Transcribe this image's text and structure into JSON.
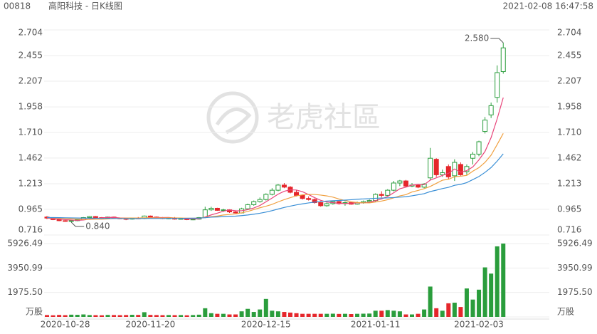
{
  "chart_data": {
    "type": "candlestick",
    "header": {
      "code": "00818",
      "name": "高阳科技 - 日K线图",
      "datetime": "2021-02-08 16:47:58"
    },
    "watermark": "老虎社區",
    "categories": [
      null,
      null,
      null,
      "2020-10-28",
      null,
      null,
      null,
      null,
      null,
      null,
      null,
      null,
      null,
      null,
      null,
      null,
      null,
      "2020-11-20",
      null,
      null,
      null,
      null,
      null,
      null,
      null,
      null,
      null,
      null,
      null,
      null,
      null,
      null,
      null,
      null,
      null,
      null,
      "2020-12-15",
      null,
      null,
      null,
      null,
      null,
      null,
      null,
      null,
      null,
      null,
      null,
      null,
      null,
      null,
      null,
      null,
      null,
      "2021-01-11",
      null,
      null,
      null,
      null,
      null,
      null,
      null,
      null,
      null,
      null,
      null,
      null,
      null,
      null,
      null,
      null,
      "2021-02-03",
      null,
      null,
      null,
      null
    ],
    "open": [
      0.89,
      0.88,
      0.865,
      0.855,
      0.85,
      0.855,
      0.865,
      0.885,
      0.895,
      0.885,
      0.88,
      0.89,
      0.88,
      0.875,
      0.87,
      0.88,
      0.875,
      0.9,
      0.89,
      0.885,
      0.875,
      0.88,
      0.87,
      0.875,
      0.865,
      0.87,
      0.885,
      0.96,
      0.975,
      0.955,
      0.96,
      0.94,
      0.93,
      0.97,
      1.01,
      1.04,
      1.06,
      1.11,
      1.15,
      1.2,
      1.18,
      1.13,
      1.1,
      1.07,
      1.06,
      1.03,
      1,
      1.02,
      1.04,
      1.02,
      1.03,
      1.015,
      1.03,
      1.04,
      1.05,
      1.11,
      1.1,
      1.15,
      1.22,
      1.24,
      1.19,
      1.2,
      1.18,
      1.27,
      1.45,
      1.3,
      1.38,
      1.29,
      1.4,
      1.33,
      1.46,
      1.5,
      1.72,
      1.88,
      2.05,
      2.3
    ],
    "high": [
      0.9,
      0.885,
      0.87,
      0.86,
      0.86,
      0.87,
      0.89,
      0.9,
      0.9,
      0.89,
      0.895,
      0.895,
      0.885,
      0.88,
      0.885,
      0.89,
      0.905,
      0.905,
      0.895,
      0.89,
      0.885,
      0.89,
      0.88,
      0.88,
      0.875,
      0.89,
      0.99,
      0.99,
      0.98,
      0.97,
      0.965,
      0.95,
      0.98,
      1.02,
      1.05,
      1.08,
      1.12,
      1.17,
      1.21,
      1.22,
      1.19,
      1.15,
      1.11,
      1.09,
      1.07,
      1.04,
      1.03,
      1.05,
      1.05,
      1.04,
      1.04,
      1.04,
      1.05,
      1.06,
      1.12,
      1.14,
      1.16,
      1.24,
      1.25,
      1.25,
      1.22,
      1.21,
      1.22,
      1.56,
      1.46,
      1.35,
      1.4,
      1.45,
      1.42,
      1.4,
      1.52,
      1.63,
      1.86,
      2,
      2.36,
      2.58
    ],
    "low": [
      0.87,
      0.86,
      0.85,
      0.845,
      0.84,
      0.85,
      0.86,
      0.88,
      0.88,
      0.875,
      0.875,
      0.875,
      0.87,
      0.86,
      0.865,
      0.87,
      0.87,
      0.885,
      0.88,
      0.87,
      0.87,
      0.865,
      0.865,
      0.86,
      0.86,
      0.865,
      0.88,
      0.95,
      0.95,
      0.94,
      0.93,
      0.925,
      0.925,
      0.96,
      1,
      1.03,
      1.05,
      1.1,
      1.14,
      1.17,
      1.12,
      1.09,
      1.06,
      1.05,
      1.02,
      0.99,
      0.99,
      1.01,
      1.01,
      1,
      1.01,
      1.01,
      1.02,
      1.03,
      1.04,
      1.08,
      1.09,
      1.14,
      1.19,
      1.18,
      1.18,
      1.17,
      1.17,
      1.25,
      1.28,
      1.28,
      1.26,
      1.24,
      1.29,
      1.3,
      1.4,
      1.48,
      1.7,
      1.85,
      2,
      2.28
    ],
    "close": [
      0.88,
      0.865,
      0.855,
      0.85,
      0.855,
      0.865,
      0.885,
      0.895,
      0.885,
      0.88,
      0.89,
      0.88,
      0.875,
      0.87,
      0.88,
      0.875,
      0.9,
      0.89,
      0.885,
      0.875,
      0.88,
      0.87,
      0.875,
      0.865,
      0.87,
      0.885,
      0.96,
      0.975,
      0.955,
      0.96,
      0.94,
      0.93,
      0.97,
      1.01,
      1.04,
      1.06,
      1.11,
      1.15,
      1.2,
      1.18,
      1.13,
      1.1,
      1.07,
      1.06,
      1.03,
      1,
      1.02,
      1.04,
      1.02,
      1.03,
      1.015,
      1.03,
      1.04,
      1.05,
      1.11,
      1.1,
      1.15,
      1.22,
      1.24,
      1.19,
      1.2,
      1.18,
      1.21,
      1.46,
      1.3,
      1.32,
      1.28,
      1.42,
      1.3,
      1.38,
      1.5,
      1.62,
      1.83,
      1.97,
      2.29,
      2.53
    ],
    "volume": [
      150,
      130,
      160,
      140,
      180,
      170,
      200,
      150,
      140,
      130,
      160,
      150,
      140,
      150,
      170,
      160,
      380,
      160,
      150,
      140,
      150,
      140,
      150,
      130,
      150,
      180,
      700,
      300,
      250,
      250,
      200,
      200,
      450,
      650,
      400,
      600,
      1450,
      500,
      450,
      400,
      350,
      300,
      250,
      250,
      250,
      250,
      250,
      260,
      240,
      250,
      230,
      250,
      260,
      270,
      500,
      500,
      550,
      500,
      450,
      200,
      200,
      250,
      600,
      2450,
      700,
      500,
      1100,
      1150,
      800,
      2300,
      1400,
      2200,
      4000,
      3500,
      5700,
      5926.49
    ],
    "ma": [
      {
        "color": "#e8457a",
        "values": [
          0.88,
          0.875,
          0.87,
          0.865,
          0.861,
          0.858,
          0.862,
          0.87,
          0.877,
          0.882,
          0.887,
          0.886,
          0.882,
          0.88,
          0.879,
          0.876,
          0.88,
          0.884,
          0.885,
          0.885,
          0.886,
          0.88,
          0.877,
          0.873,
          0.872,
          0.873,
          0.891,
          0.911,
          0.928,
          0.947,
          0.958,
          0.952,
          0.951,
          0.962,
          0.978,
          1.002,
          1.038,
          1.074,
          1.112,
          1.14,
          1.154,
          1.152,
          1.136,
          1.108,
          1.078,
          1.052,
          1.036,
          1.03,
          1.022,
          1.022,
          1.025,
          1.027,
          1.027,
          1.033,
          1.049,
          1.066,
          1.09,
          1.126,
          1.164,
          1.18,
          1.2,
          1.206,
          1.204,
          1.248,
          1.27,
          1.294,
          1.314,
          1.356,
          1.324,
          1.34,
          1.376,
          1.444,
          1.526,
          1.66,
          1.842,
          2.048
        ]
      },
      {
        "color": "#f0a040",
        "values": [
          0.885,
          0.882,
          0.879,
          0.876,
          0.873,
          0.87,
          0.868,
          0.868,
          0.869,
          0.869,
          0.872,
          0.876,
          0.879,
          0.88,
          0.881,
          0.881,
          0.883,
          0.883,
          0.882,
          0.882,
          0.883,
          0.882,
          0.881,
          0.879,
          0.878,
          0.88,
          0.886,
          0.894,
          0.9,
          0.91,
          0.915,
          0.921,
          0.931,
          0.944,
          0.962,
          0.98,
          0.995,
          1.013,
          1.037,
          1.059,
          1.078,
          1.095,
          1.105,
          1.11,
          1.109,
          1.103,
          1.095,
          1.083,
          1.065,
          1.05,
          1.038,
          1.031,
          1.028,
          1.027,
          1.036,
          1.045,
          1.058,
          1.076,
          1.095,
          1.107,
          1.133,
          1.148,
          1.165,
          1.187,
          1.217,
          1.247,
          1.256,
          1.281,
          1.286,
          1.294,
          1.335,
          1.369,
          1.42,
          1.49,
          1.593,
          1.701
        ]
      },
      {
        "color": "#3a8fd6",
        "values": [
          0.885,
          0.885,
          0.884,
          0.883,
          0.882,
          0.881,
          0.88,
          0.879,
          0.878,
          0.877,
          0.877,
          0.876,
          0.876,
          0.875,
          0.875,
          0.875,
          0.876,
          0.876,
          0.876,
          0.876,
          0.877,
          0.877,
          0.877,
          0.878,
          0.879,
          0.88,
          0.884,
          0.889,
          0.891,
          0.894,
          0.897,
          0.899,
          0.904,
          0.91,
          0.918,
          0.927,
          0.938,
          0.952,
          0.968,
          0.983,
          0.996,
          1.008,
          1.018,
          1.027,
          1.035,
          1.041,
          1.045,
          1.048,
          1.051,
          1.054,
          1.058,
          1.063,
          1.066,
          1.068,
          1.072,
          1.074,
          1.076,
          1.079,
          1.083,
          1.087,
          1.096,
          1.106,
          1.117,
          1.137,
          1.151,
          1.166,
          1.178,
          1.198,
          1.207,
          1.224,
          1.253,
          1.283,
          1.323,
          1.37,
          1.432,
          1.503
        ]
      }
    ],
    "up_color": "#2a9d3c",
    "down_color": "#e5262b",
    "ylim": [
      0.716,
      2.704
    ],
    "yticks": [
      2.704,
      2.455,
      2.207,
      1.958,
      {
        "value": 1.71,
        "label": "1.710"
      },
      1.462,
      1.213,
      0.965,
      0.716
    ],
    "vol_ylim": [
      0,
      5926.49
    ],
    "vol_yticks": [
      5926.49,
      3950.99,
      {
        "value": 1975.5,
        "label": "1975.50"
      },
      {
        "value": 0,
        "label": "万股"
      }
    ],
    "high_label": {
      "value": 2.58,
      "label": "2.580"
    },
    "low_label": {
      "value": 0.84,
      "label": "0.840"
    }
  }
}
